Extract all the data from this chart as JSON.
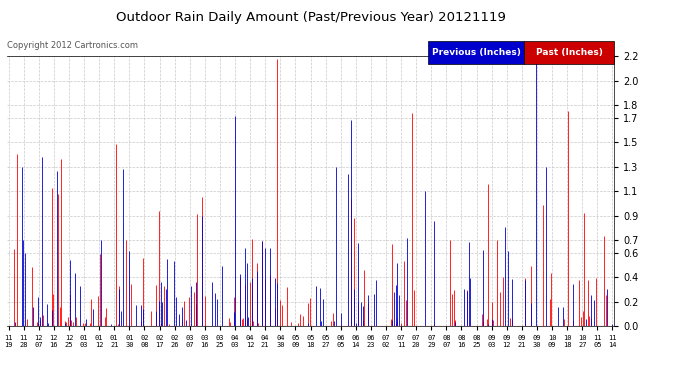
{
  "title": "Outdoor Rain Daily Amount (Past/Previous Year) 20121119",
  "copyright": "Copyright 2012 Cartronics.com",
  "legend_previous": "Previous (Inches)",
  "legend_past": "Past (Inches)",
  "legend_previous_bg": "#0000CC",
  "legend_past_bg": "#CC0000",
  "background_color": "#FFFFFF",
  "plot_bg_color": "#FFFFFF",
  "grid_color": "#BBBBBB",
  "yticks": [
    0.0,
    0.2,
    0.4,
    0.6,
    0.7,
    0.9,
    1.1,
    1.3,
    1.5,
    1.7,
    1.8,
    2.0,
    2.2
  ],
  "xtick_labels": [
    "11/19",
    "11/28",
    "12/07",
    "12/16",
    "12/25",
    "01/03",
    "01/12",
    "01/21",
    "01/30",
    "02/08",
    "02/17",
    "02/26",
    "03/07",
    "03/16",
    "03/25",
    "04/03",
    "04/12",
    "04/21",
    "04/30",
    "05/09",
    "05/18",
    "05/27",
    "06/05",
    "06/14",
    "06/23",
    "07/02",
    "07/11",
    "07/20",
    "07/29",
    "08/07",
    "08/16",
    "08/25",
    "09/03",
    "09/12",
    "09/21",
    "09/30",
    "10/09",
    "10/18",
    "10/27",
    "11/05",
    "11/14"
  ],
  "num_points": 366,
  "ylim": [
    0.0,
    2.2
  ],
  "prev_color": "#0000CC",
  "past_color": "#FF0000"
}
